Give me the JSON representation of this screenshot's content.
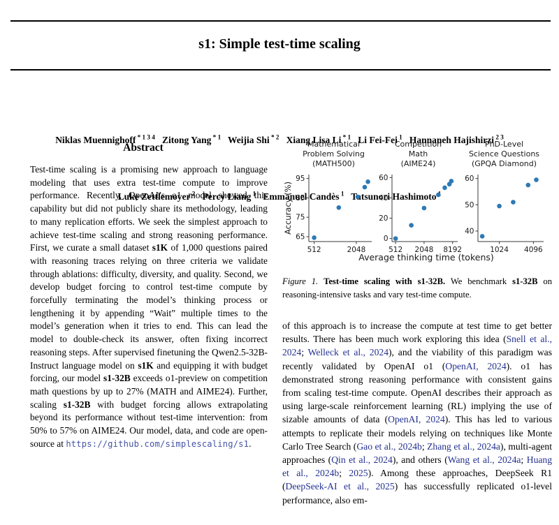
{
  "page": {
    "title": "s1: Simple test-time scaling"
  },
  "authors": {
    "line1": [
      {
        "t": "Niklas Muennighoff"
      },
      {
        "t": " * 1 3 4",
        "s": "sup"
      },
      {
        "t": "   Zitong Yang"
      },
      {
        "t": " * 1",
        "s": "sup"
      },
      {
        "t": "   Weijia Shi"
      },
      {
        "t": " * 2",
        "s": "sup"
      },
      {
        "t": "   Xiang Lisa Li"
      },
      {
        "t": " * 1",
        "s": "sup"
      },
      {
        "t": "   Li Fei-Fei"
      },
      {
        "t": " 1",
        "s": "sup"
      },
      {
        "t": "   Hannaneh Hajishirzi"
      },
      {
        "t": " 2 3",
        "s": "sup"
      }
    ],
    "line2": [
      {
        "t": "Luke Zettlemoyer"
      },
      {
        "t": " 2",
        "s": "sup"
      },
      {
        "t": "   Percy Liang"
      },
      {
        "t": " 1",
        "s": "sup"
      },
      {
        "t": "   Emmanuel Candès"
      },
      {
        "t": " 1",
        "s": "sup"
      },
      {
        "t": "   Tatsunori Hashimoto"
      },
      {
        "t": " 1",
        "s": "sup"
      }
    ]
  },
  "abstract": {
    "heading": "Abstract",
    "runs": [
      {
        "t": "Test-time scaling is a promising new approach to language modeling that uses extra test-time compute to improve performance. Recently, OpenAI’s o1 model showed this capability but did not publicly share its methodology, leading to many replication efforts. We seek the simplest approach to achieve test-time scaling and strong reasoning performance. First, we curate a small dataset "
      },
      {
        "t": "s1K",
        "s": "b"
      },
      {
        "t": " of 1,000 questions paired with reasoning traces relying on three criteria we validate through ablations: difficulty, diversity, and quality. Second, we develop budget forcing to control test-time compute by forcefully terminating the model’s thinking process or lengthening it by appending “Wait” multiple times to the model’s generation when it tries to end. This can lead the model to double-check its answer, often fixing incorrect reasoning steps. After supervised finetuning the Qwen2.5-32B-Instruct language model on "
      },
      {
        "t": "s1K",
        "s": "b"
      },
      {
        "t": " and equipping it with budget forcing, our model "
      },
      {
        "t": "s1-32B",
        "s": "b"
      },
      {
        "t": " exceeds o1-preview on competition math questions by up to 27% (MATH and AIME24). Further, scaling "
      },
      {
        "t": "s1-32B",
        "s": "b"
      },
      {
        "t": " with budget forcing allows extrapolating beyond its performance without test-time intervention: from 50% to 57% on AIME24. Our model, data, and code are open-source at "
      },
      {
        "t": "https://github.com/simplescaling/s1",
        "s": "url"
      },
      {
        "t": "."
      }
    ]
  },
  "figure": {
    "ylabel": "Accuracy (%)",
    "xlabel": "Average thinking time (tokens)",
    "caption_runs": [
      {
        "t": "Figure 1.",
        "s": "i"
      },
      {
        "t": " "
      },
      {
        "t": "Test-time scaling with s1-32B.",
        "s": "b"
      },
      {
        "t": " We benchmark "
      },
      {
        "t": "s1-32B",
        "s": "b"
      },
      {
        "t": " on reasoning-intensive tasks and vary test-time compute."
      }
    ]
  },
  "chart_data": [
    {
      "type": "scatter",
      "title": "Mathematical\nProblem Solving\n(MATH500)",
      "xlabel": "Average thinking time (tokens)",
      "ylabel": "Accuracy (%)",
      "xscale": "log2",
      "x": [
        512,
        1150,
        2150,
        2700,
        3000
      ],
      "y": [
        64.5,
        80,
        85.5,
        90.5,
        93.3
      ],
      "xlim": [
        430,
        3400
      ],
      "ylim": [
        62.5,
        97
      ],
      "xticks": [
        512,
        2048
      ],
      "yticks": [
        65,
        75,
        85,
        95
      ]
    },
    {
      "type": "scatter",
      "title": "Competition\nMath\n(AIME24)",
      "xlabel": "Average thinking time (tokens)",
      "xscale": "log2",
      "x": [
        512,
        1100,
        2048,
        4096,
        5600,
        7000,
        7700
      ],
      "y": [
        0,
        13,
        30,
        43,
        50,
        53.5,
        56.5
      ],
      "xlim": [
        430,
        10500
      ],
      "ylim": [
        -3,
        63
      ],
      "xticks": [
        512,
        2048,
        8192
      ],
      "yticks": [
        0,
        20,
        40,
        60
      ]
    },
    {
      "type": "scatter",
      "title": "PhD-Level\nScience Questions\n(GPQA Diamond)",
      "xlabel": "Average thinking time (tokens)",
      "xscale": "log2",
      "x": [
        512,
        1024,
        1800,
        3300,
        4600
      ],
      "y": [
        38,
        49.5,
        51,
        57.5,
        59.5
      ],
      "xlim": [
        430,
        6200
      ],
      "ylim": [
        36,
        61.5
      ],
      "xticks": [
        1024,
        4096
      ],
      "yticks": [
        40,
        50,
        60
      ]
    }
  ],
  "intro": {
    "runs": [
      {
        "t": "of this approach is to increase the compute at test time to get better results. There has been much work exploring this idea ("
      },
      {
        "t": "Snell et al., 2024",
        "s": "link"
      },
      {
        "t": "; "
      },
      {
        "t": "Welleck et al., 2024",
        "s": "link"
      },
      {
        "t": "), and the viability of this paradigm was recently validated by OpenAI o1 ("
      },
      {
        "t": "OpenAI, 2024",
        "s": "link"
      },
      {
        "t": "). o1 has demonstrated strong reasoning performance with consistent gains from scaling test-time compute. OpenAI describes their approach as using large-scale reinforcement learning (RL) implying the use of sizable amounts of data ("
      },
      {
        "t": "OpenAI, 2024",
        "s": "link"
      },
      {
        "t": "). This has led to various attempts to replicate their models relying on techniques like Monte Carlo Tree Search ("
      },
      {
        "t": "Gao et al., 2024b",
        "s": "link"
      },
      {
        "t": "; "
      },
      {
        "t": "Zhang et al., 2024a",
        "s": "link"
      },
      {
        "t": "), multi-agent approaches ("
      },
      {
        "t": "Qin et al., 2024",
        "s": "link"
      },
      {
        "t": "), and others ("
      },
      {
        "t": "Wang et al., 2024a",
        "s": "link"
      },
      {
        "t": "; "
      },
      {
        "t": "Huang et al., 2024b",
        "s": "link"
      },
      {
        "t": "; "
      },
      {
        "t": "2025",
        "s": "link"
      },
      {
        "t": "). Among these approaches, DeepSeek R1 ("
      },
      {
        "t": "DeepSeek-AI et al., 2025",
        "s": "link"
      },
      {
        "t": ") has successfully replicated o1-level performance, also em-"
      }
    ]
  },
  "colors": {
    "accent_point": "#2d79b5",
    "citation": "#24318f",
    "url": "#4553a4",
    "axis": "#3a3a3a"
  }
}
